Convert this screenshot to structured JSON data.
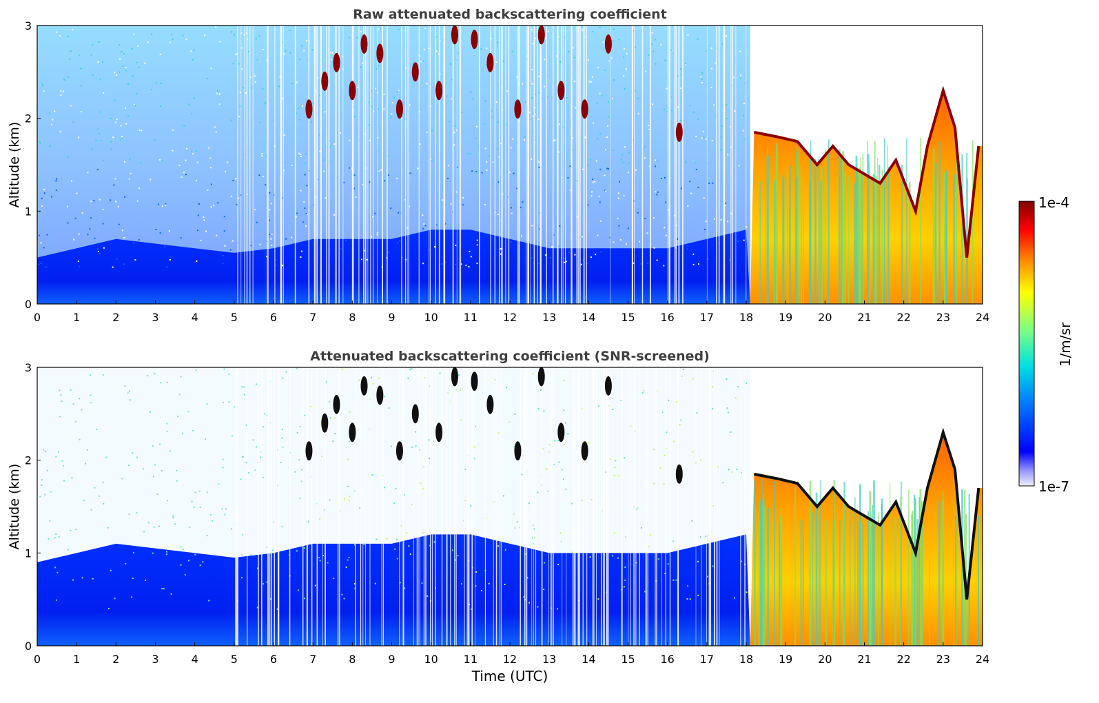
{
  "chart_data": [
    {
      "type": "heatmap",
      "title": "Raw attenuated backscattering coefficient",
      "xlabel": "",
      "ylabel": "Altitude (km)",
      "xlim": [
        0,
        24
      ],
      "ylim": [
        0,
        3
      ],
      "xticks": [
        "0",
        "1",
        "2",
        "3",
        "4",
        "5",
        "6",
        "7",
        "8",
        "9",
        "10",
        "11",
        "12",
        "13",
        "14",
        "15",
        "16",
        "17",
        "18",
        "19",
        "20",
        "21",
        "22",
        "23",
        "24"
      ],
      "yticks": [
        "0",
        "1",
        "2",
        "3"
      ],
      "screened": false,
      "features": {
        "boundary_layer_top_km": [
          0.4,
          0.5,
          0.6,
          0.55,
          0.5,
          0.45,
          0.5,
          0.6,
          0.6,
          0.6,
          0.7,
          0.7,
          0.6,
          0.5,
          0.5,
          0.5,
          0.5,
          0.6,
          0.7
        ],
        "cloud_cells": [
          {
            "t": 6.9,
            "z": 2.1
          },
          {
            "t": 7.3,
            "z": 2.4
          },
          {
            "t": 7.6,
            "z": 2.6
          },
          {
            "t": 8.0,
            "z": 2.3
          },
          {
            "t": 8.3,
            "z": 2.8
          },
          {
            "t": 8.7,
            "z": 2.7
          },
          {
            "t": 9.2,
            "z": 2.1
          },
          {
            "t": 9.6,
            "z": 2.5
          },
          {
            "t": 10.2,
            "z": 2.3
          },
          {
            "t": 10.6,
            "z": 2.9
          },
          {
            "t": 11.1,
            "z": 2.85
          },
          {
            "t": 11.5,
            "z": 2.6
          },
          {
            "t": 12.2,
            "z": 2.1
          },
          {
            "t": 12.8,
            "z": 2.9
          },
          {
            "t": 13.3,
            "z": 2.3
          },
          {
            "t": 13.9,
            "z": 2.1
          },
          {
            "t": 14.5,
            "z": 2.8
          },
          {
            "t": 16.3,
            "z": 1.85
          }
        ],
        "cloud_layer_after_18h_km": [
          {
            "t": 18.2,
            "z": 1.85
          },
          {
            "t": 18.8,
            "z": 1.8
          },
          {
            "t": 19.3,
            "z": 1.75
          },
          {
            "t": 19.8,
            "z": 1.5
          },
          {
            "t": 20.2,
            "z": 1.7
          },
          {
            "t": 20.6,
            "z": 1.5
          },
          {
            "t": 21.0,
            "z": 1.4
          },
          {
            "t": 21.4,
            "z": 1.3
          },
          {
            "t": 21.8,
            "z": 1.55
          },
          {
            "t": 22.3,
            "z": 1.0
          },
          {
            "t": 22.6,
            "z": 1.7
          },
          {
            "t": 23.0,
            "z": 2.3
          },
          {
            "t": 23.3,
            "z": 1.9
          },
          {
            "t": 23.6,
            "z": 0.5
          },
          {
            "t": 23.9,
            "z": 1.7
          }
        ]
      }
    },
    {
      "type": "heatmap",
      "title": "Attenuated backscattering coefficient (SNR-screened)",
      "xlabel": "Time (UTC)",
      "ylabel": "Altitude (km)",
      "xlim": [
        0,
        24
      ],
      "ylim": [
        0,
        3
      ],
      "xticks": [
        "0",
        "1",
        "2",
        "3",
        "4",
        "5",
        "6",
        "7",
        "8",
        "9",
        "10",
        "11",
        "12",
        "13",
        "14",
        "15",
        "16",
        "17",
        "18",
        "19",
        "20",
        "21",
        "22",
        "23",
        "24"
      ],
      "yticks": [
        "0",
        "1",
        "2",
        "3"
      ],
      "screened": true
    }
  ],
  "colorbar": {
    "label": "1/m/sr",
    "min_label": "1e-7",
    "max_label": "1e-4",
    "scale": "log",
    "colors": [
      "#e8e8f8",
      "#0000ff",
      "#0080ff",
      "#00e0e0",
      "#80ff80",
      "#ffff00",
      "#ff8000",
      "#ff0000",
      "#800000"
    ]
  }
}
